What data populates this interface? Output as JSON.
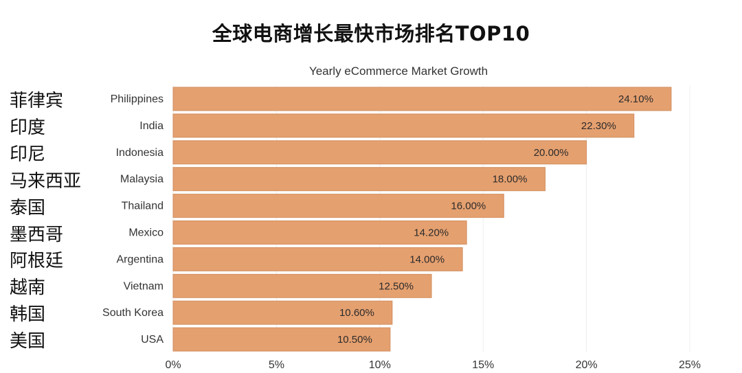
{
  "page_title": "全球电商增长最快市场排名TOP10",
  "cn_labels": [
    "菲律宾",
    "印度",
    "印尼",
    "马来西亚",
    "泰国",
    "墨西哥",
    "阿根廷",
    "越南",
    "韩国",
    "美国"
  ],
  "colors": {
    "bar": "#E5A06F",
    "bar_stroke": "#d18e5f",
    "grid": "#ededed",
    "text": "#333333"
  },
  "chart_data": {
    "type": "bar",
    "orientation": "horizontal",
    "title": "Yearly eCommerce Market Growth",
    "categories": [
      "Philippines",
      "India",
      "Indonesia",
      "Malaysia",
      "Thailand",
      "Mexico",
      "Argentina",
      "Vietnam",
      "South Korea",
      "USA"
    ],
    "values": [
      24.1,
      22.3,
      20.0,
      18.0,
      16.0,
      14.2,
      14.0,
      12.5,
      10.6,
      10.5
    ],
    "data_labels": [
      "24.10%",
      "22.30%",
      "20.00%",
      "18.00%",
      "16.00%",
      "14.20%",
      "14.00%",
      "12.50%",
      "10.60%",
      "10.50%"
    ],
    "x_ticks": [
      "0%",
      "5%",
      "10%",
      "15%",
      "20%",
      "25%"
    ],
    "xlim": [
      0,
      25
    ],
    "grid": true
  }
}
